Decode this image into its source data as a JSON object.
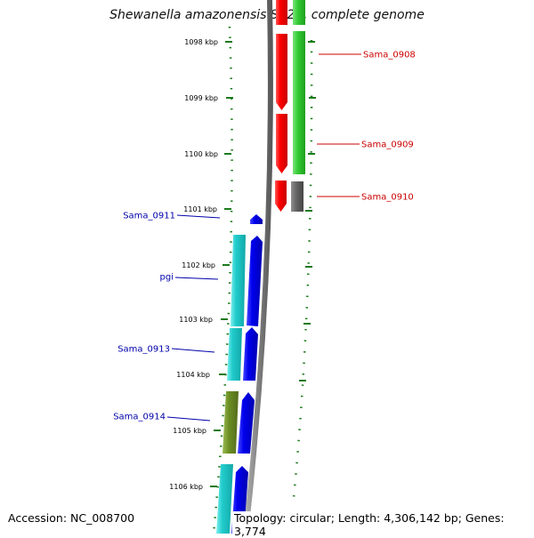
{
  "title": "Shewanella amazonensis SB2B, complete genome",
  "footer": {
    "accession": "Accession: NC_008700",
    "summary": "Topology: circular; Length: 4,306,142 bp; Genes: 3,774"
  },
  "ruler": {
    "ticks": [
      "1098 kbp",
      "1099 kbp",
      "1100 kbp",
      "1101 kbp",
      "1102 kbp",
      "1103 kbp",
      "1104 kbp",
      "1105 kbp",
      "1106 kbp"
    ]
  },
  "colors": {
    "forward_label": "#cc0000",
    "reverse_label": "#0000aa",
    "backbone": "#808080",
    "tick": "#1a7a1a"
  },
  "genes": {
    "right": [
      {
        "label": "Sama_0908",
        "color": "#cc0000"
      },
      {
        "label": "Sama_0909",
        "color": "#cc0000"
      },
      {
        "label": "Sama_0910",
        "color": "#cc0000"
      }
    ],
    "left": [
      {
        "label": "Sama_0911",
        "color": "#0000aa"
      },
      {
        "label": "pgi",
        "color": "#0000aa"
      },
      {
        "label": "Sama_0913",
        "color": "#0000aa"
      },
      {
        "label": "Sama_0914",
        "color": "#0000aa"
      }
    ]
  }
}
